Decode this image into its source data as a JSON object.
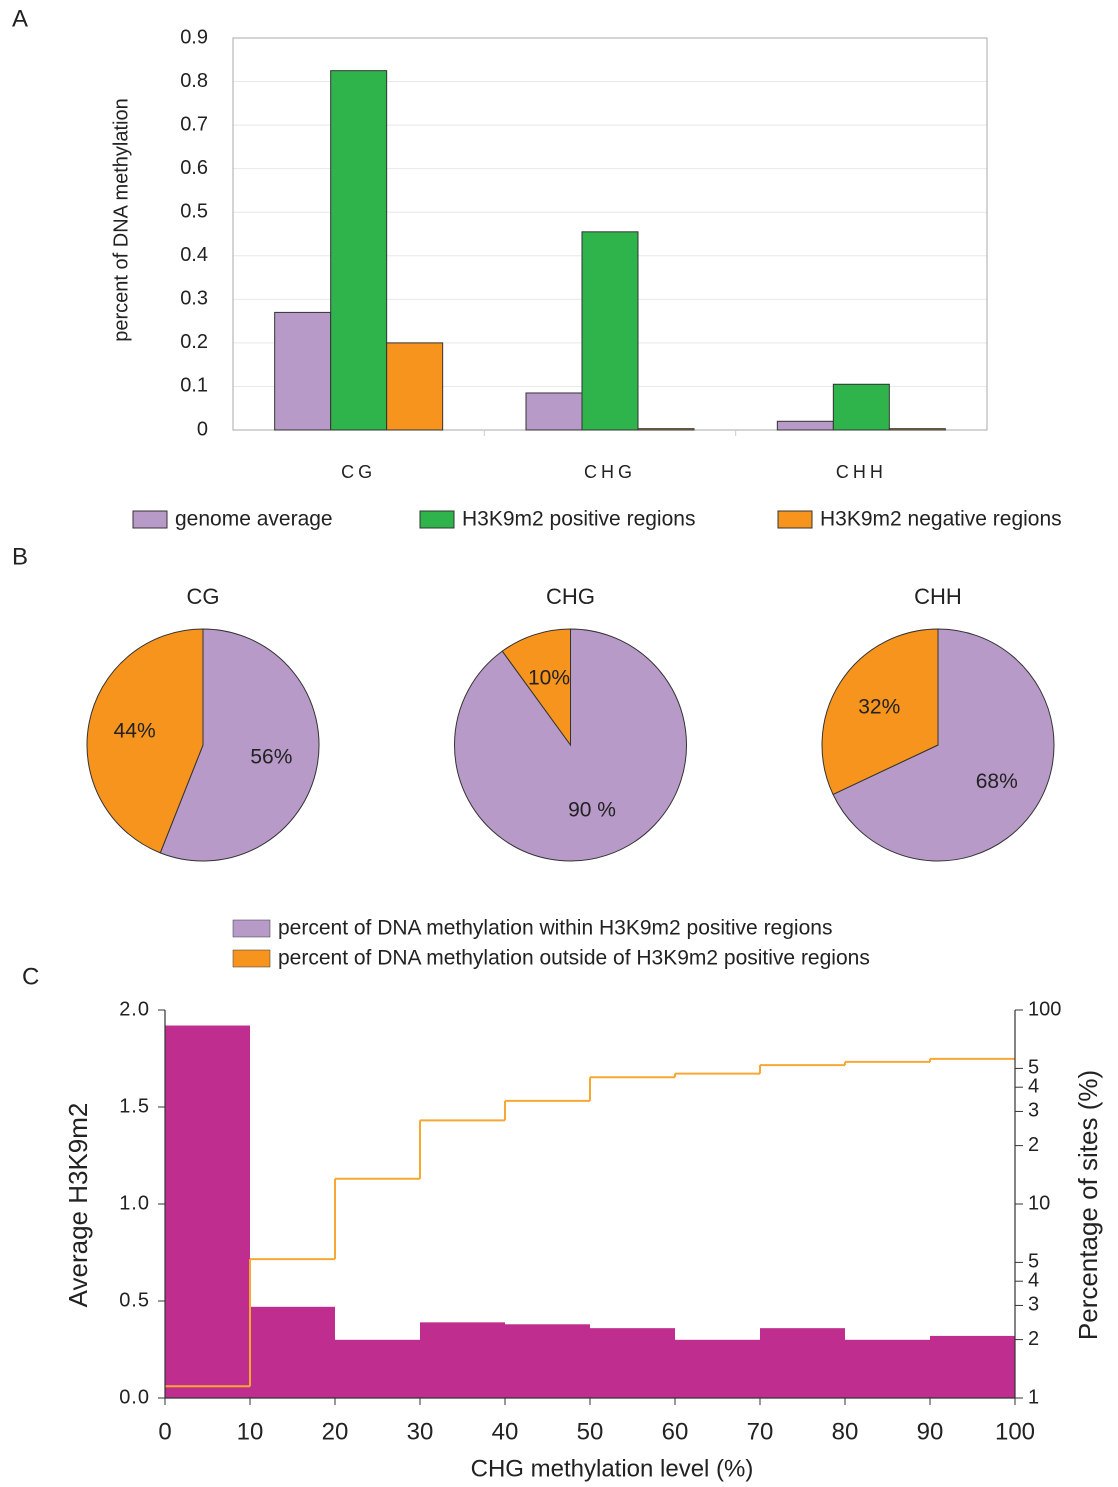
{
  "chart_data": [
    {
      "type": "bar",
      "panel": "A",
      "ylabel": "percent of DNA methylation",
      "categories": [
        "CG",
        "CHG",
        "CHH"
      ],
      "series": [
        {
          "name": "genome average",
          "color": "#b89ac9",
          "values": [
            0.27,
            0.085,
            0.02
          ]
        },
        {
          "name": "H3K9m2 positive regions",
          "color": "#2fb34b",
          "values": [
            0.825,
            0.455,
            0.105
          ]
        },
        {
          "name": "H3K9m2 negative regions",
          "color": "#f7941d",
          "values": [
            0.2,
            0.003,
            0.003
          ]
        }
      ],
      "ylim": [
        0,
        0.9
      ],
      "yticks": [
        0,
        0.1,
        0.2,
        0.3,
        0.4,
        0.5,
        0.6,
        0.7,
        0.8,
        0.9
      ],
      "grid": true
    },
    {
      "type": "pie",
      "panel": "B",
      "categories": [
        "percent of DNA methylation within H3K9m2 positive regions",
        "percent of DNA methylation outside of H3K9m2 positive regions"
      ],
      "colors": [
        "#b89ac9",
        "#f7941d"
      ],
      "pies": [
        {
          "title": "CG",
          "values": [
            56,
            44
          ],
          "value_labels": [
            "56%",
            "44%"
          ]
        },
        {
          "title": "CHG",
          "values": [
            90,
            10
          ],
          "value_labels": [
            "90 %",
            "10%"
          ]
        },
        {
          "title": "CHH",
          "values": [
            68,
            32
          ],
          "value_labels": [
            "68%",
            "32%"
          ]
        }
      ]
    },
    {
      "type": "histogram",
      "panel": "C",
      "xlabel": "CHG methylation level (%)",
      "ylabel": "Average H3K9m2",
      "y2label": "Percentage of sites (%)",
      "bins": [
        0,
        10,
        20,
        30,
        40,
        50,
        60,
        70,
        80,
        90,
        100
      ],
      "values": [
        1.92,
        0.47,
        0.3,
        0.39,
        0.38,
        0.36,
        0.3,
        0.36,
        0.3,
        0.32
      ],
      "color": "#bf2d8f",
      "series": [
        {
          "color": "#f7a832",
          "axis": "y2",
          "values": [
            1.15,
            5.2,
            13.5,
            27,
            34,
            45,
            47,
            52,
            54,
            56
          ]
        }
      ],
      "xlim": [
        0,
        100
      ],
      "xticks": [
        0,
        10,
        20,
        30,
        40,
        50,
        60,
        70,
        80,
        90,
        100
      ],
      "ylim": [
        0,
        2
      ],
      "yticks": [
        {
          "value": 0,
          "label": "0.0"
        },
        0.5,
        {
          "value": 1,
          "label": "1.0"
        },
        1.5,
        {
          "value": 2,
          "label": "2.0"
        }
      ],
      "y2lim": [
        1,
        100
      ],
      "y2scale": "log",
      "y2ticks": [
        1,
        2,
        3,
        4,
        5,
        10,
        {
          "value": 20,
          "label": "2"
        },
        {
          "value": 30,
          "label": "3"
        },
        {
          "value": 40,
          "label": "4"
        },
        {
          "value": 50,
          "label": "5"
        },
        100
      ]
    }
  ]
}
